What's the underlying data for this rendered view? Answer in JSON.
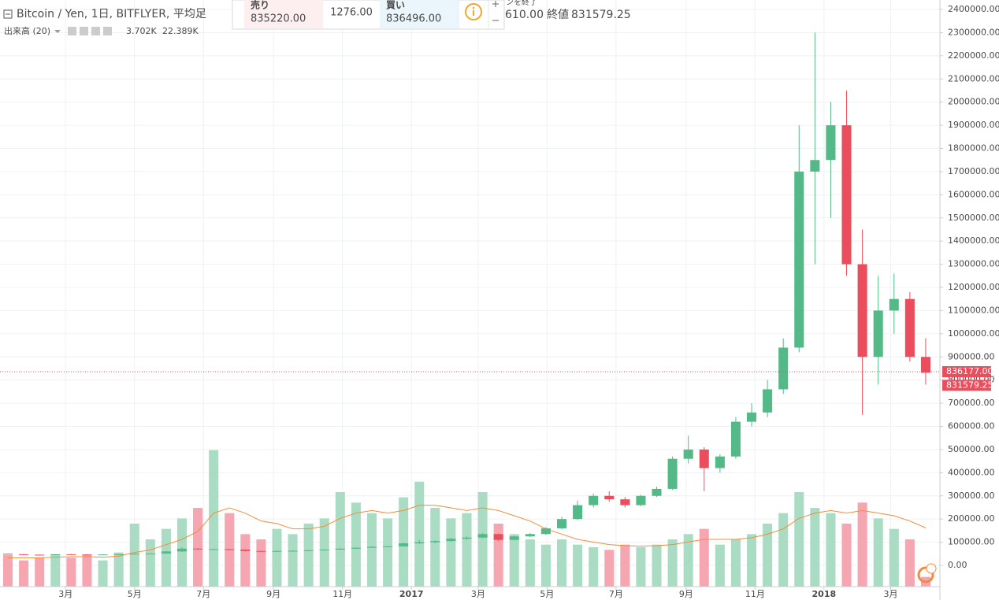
{
  "chart_data": {
    "type": "candlestick",
    "title": "Bitcoin / Yen, 1日, BITFLYER, 平均足",
    "close_label": "終値",
    "faded_text": "ンを終了",
    "faded_value": "610.00",
    "up_color": "#53b987",
    "down_color": "#eb4d5c",
    "volume_up_color": "#a9dcc3",
    "volume_down_color": "#f5a6b0",
    "ma_color": "#f68b3a",
    "ylim": [
      0,
      2400000
    ],
    "yticks": [
      {
        "value": 0,
        "label": "0.00"
      },
      {
        "value": 100000,
        "label": "100000.00"
      },
      {
        "value": 200000,
        "label": "200000.00"
      },
      {
        "value": 300000,
        "label": "300000.00"
      },
      {
        "value": 400000,
        "label": "400000.00"
      },
      {
        "value": 500000,
        "label": "500000.00"
      },
      {
        "value": 600000,
        "label": "600000.00"
      },
      {
        "value": 700000,
        "label": "700000.00"
      },
      {
        "value": 800000,
        "label": "800000.00"
      },
      {
        "value": 900000,
        "label": "900000.00"
      },
      {
        "value": 1000000,
        "label": "1000000.00"
      },
      {
        "value": 1100000,
        "label": "1100000.00"
      },
      {
        "value": 1200000,
        "label": "1200000.00"
      },
      {
        "value": 1300000,
        "label": "1300000.00"
      },
      {
        "value": 1400000,
        "label": "1400000.00"
      },
      {
        "value": 1500000,
        "label": "1500000.00"
      },
      {
        "value": 1600000,
        "label": "1600000.00"
      },
      {
        "value": 1700000,
        "label": "1700000.00"
      },
      {
        "value": 1800000,
        "label": "1800000.00"
      },
      {
        "value": 1900000,
        "label": "1900000.00"
      },
      {
        "value": 2000000,
        "label": "2000000.00"
      },
      {
        "value": 2100000,
        "label": "2100000.00"
      },
      {
        "value": 2200000,
        "label": "2200000.00"
      },
      {
        "value": 2300000,
        "label": "2300000.00"
      },
      {
        "value": 2400000,
        "label": "2400000.00"
      }
    ],
    "xlim": [
      0,
      826
    ],
    "xticks": [
      {
        "value": 58,
        "label": "3月"
      },
      {
        "value": 119,
        "label": "5月"
      },
      {
        "value": 180,
        "label": "7月"
      },
      {
        "value": 242,
        "label": "9月"
      },
      {
        "value": 303,
        "label": "11月"
      },
      {
        "value": 364,
        "label": "2017"
      },
      {
        "value": 423,
        "label": "3月"
      },
      {
        "value": 484,
        "label": "5月"
      },
      {
        "value": 545,
        "label": "7月"
      },
      {
        "value": 607,
        "label": "9月"
      },
      {
        "value": 668,
        "label": "11月"
      },
      {
        "value": 729,
        "label": "2018"
      },
      {
        "value": 788,
        "label": "3月"
      }
    ],
    "grid": true,
    "x": [
      7,
      21,
      35,
      49,
      63,
      77,
      91,
      105,
      119,
      133,
      147,
      161,
      175,
      189,
      203,
      217,
      231,
      245,
      259,
      273,
      287,
      301,
      315,
      329,
      343,
      357,
      371,
      385,
      399,
      413,
      427,
      441,
      455,
      469,
      483,
      497,
      511,
      525,
      539,
      553,
      567,
      581,
      595,
      609,
      623,
      637,
      651,
      665,
      679,
      693,
      707,
      721,
      735,
      749,
      763,
      777,
      791,
      805,
      819
    ],
    "open": [
      50000,
      48000,
      46000,
      44000,
      48000,
      47000,
      46000,
      47000,
      48000,
      50000,
      51000,
      60000,
      72000,
      70000,
      70000,
      68000,
      62000,
      61000,
      62000,
      63000,
      65000,
      68000,
      72000,
      76000,
      80000,
      82000,
      95000,
      100000,
      105000,
      115000,
      120000,
      135000,
      110000,
      125000,
      135000,
      160000,
      200000,
      260000,
      300000,
      285000,
      260000,
      300000,
      330000,
      460000,
      500000,
      420000,
      470000,
      620000,
      660000,
      760000,
      940000,
      1700000,
      1750000,
      1900000,
      1300000,
      900000,
      1100000,
      1150000,
      900000
    ],
    "high": [
      51000,
      49000,
      47000,
      49000,
      49000,
      48000,
      48000,
      49000,
      52000,
      53000,
      62000,
      78000,
      75000,
      72000,
      71000,
      69000,
      63000,
      64000,
      65000,
      67000,
      70000,
      74000,
      78000,
      82000,
      85000,
      98000,
      110000,
      108000,
      118000,
      125000,
      140000,
      138000,
      128000,
      140000,
      165000,
      210000,
      280000,
      310000,
      320000,
      295000,
      305000,
      340000,
      470000,
      560000,
      510000,
      480000,
      640000,
      700000,
      800000,
      980000,
      1900000,
      2300000,
      2000000,
      2050000,
      1450000,
      1250000,
      1260000,
      1180000,
      980000
    ],
    "low": [
      47000,
      45000,
      43000,
      43000,
      46000,
      45000,
      45000,
      46000,
      47000,
      49000,
      50000,
      58000,
      68000,
      68000,
      66000,
      60000,
      59000,
      60000,
      61000,
      62000,
      64000,
      67000,
      71000,
      75000,
      79000,
      81000,
      92000,
      95000,
      102000,
      110000,
      118000,
      105000,
      108000,
      122000,
      132000,
      155000,
      195000,
      250000,
      275000,
      250000,
      255000,
      295000,
      325000,
      440000,
      320000,
      400000,
      460000,
      600000,
      640000,
      740000,
      920000,
      1300000,
      1500000,
      1250000,
      650000,
      780000,
      1000000,
      880000,
      780000
    ],
    "close": [
      48000,
      46000,
      44000,
      48000,
      47000,
      46000,
      47000,
      48000,
      50000,
      51000,
      60000,
      72000,
      70000,
      70000,
      68000,
      62000,
      61000,
      62000,
      63000,
      65000,
      68000,
      72000,
      76000,
      80000,
      82000,
      95000,
      100000,
      105000,
      115000,
      120000,
      135000,
      110000,
      125000,
      135000,
      160000,
      200000,
      260000,
      300000,
      285000,
      260000,
      300000,
      330000,
      460000,
      500000,
      420000,
      470000,
      620000,
      660000,
      760000,
      940000,
      1700000,
      1750000,
      1900000,
      1300000,
      900000,
      1100000,
      1150000,
      900000,
      831579.25
    ],
    "vlim": [
      0,
      60000
    ],
    "volume": [
      12000,
      10000,
      11000,
      12000,
      11000,
      12000,
      10000,
      13000,
      24000,
      18000,
      22000,
      26000,
      30000,
      52000,
      28000,
      20000,
      18000,
      22000,
      20000,
      24000,
      26000,
      36000,
      32000,
      28000,
      26000,
      34000,
      40000,
      30000,
      26000,
      28000,
      36000,
      24000,
      20000,
      18000,
      16000,
      18000,
      16000,
      15000,
      14000,
      16000,
      15000,
      16000,
      18000,
      20000,
      22000,
      16000,
      18000,
      20000,
      24000,
      28000,
      36000,
      30000,
      28000,
      24000,
      32000,
      26000,
      22000,
      18000,
      3702
    ],
    "volume_ma": [
      11000,
      11000,
      11000,
      11200,
      11400,
      11400,
      11200,
      11600,
      13000,
      14000,
      16000,
      18000,
      21000,
      28000,
      30000,
      28000,
      25000,
      24000,
      22000,
      22000,
      23000,
      26000,
      28000,
      29000,
      28000,
      29000,
      31000,
      31000,
      30000,
      29000,
      30000,
      29000,
      27000,
      25000,
      22000,
      20000,
      18000,
      17000,
      16000,
      15600,
      15400,
      15600,
      16000,
      17000,
      18000,
      18000,
      18000,
      18600,
      20000,
      22000,
      26000,
      28000,
      29000,
      28000,
      29000,
      28000,
      27000,
      25000,
      22389
    ],
    "volume_legend": {
      "label": "出来高 (20)",
      "last": {
        "value": 3702,
        "label": "3.702K"
      },
      "ma": {
        "value": 22389,
        "label": "22.389K"
      }
    },
    "price_lines": [
      {
        "value": 836177,
        "label": "836177.00"
      },
      {
        "value": 831579.25,
        "label": "831579.25"
      }
    ],
    "trade_panel": {
      "sell_label": "売り",
      "sell": {
        "value": 835220,
        "label": "835220.00"
      },
      "spread": {
        "value": 1276,
        "label": "1276.00"
      },
      "buy_label": "買い",
      "buy": {
        "value": 836496,
        "label": "836496.00"
      }
    }
  }
}
